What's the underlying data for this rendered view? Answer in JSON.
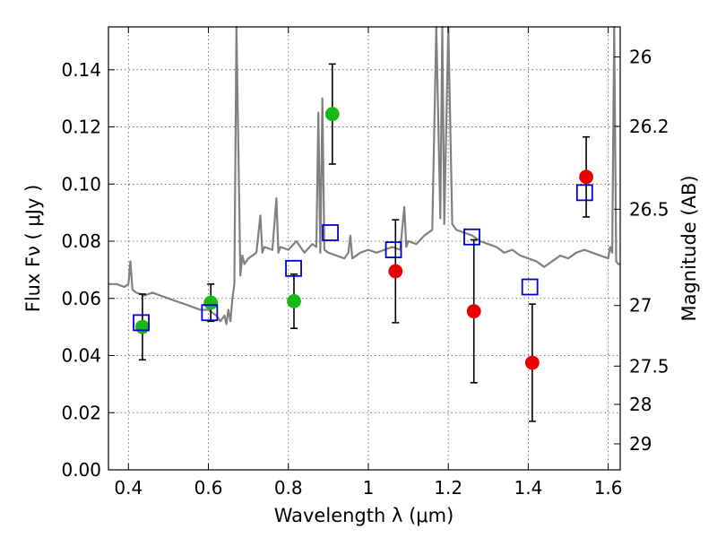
{
  "chart_data": {
    "type": "scatter",
    "xlabel": "Wavelength  λ (μm)",
    "ylabel": "Flux  Fν  ( μJy )",
    "ylabel2": "Magnitude (AB)",
    "xlim": [
      0.35,
      1.63
    ],
    "ylim": [
      0.0,
      0.155
    ],
    "grid": true,
    "x_ticks": [
      0.4,
      0.6,
      0.8,
      1.0,
      1.2,
      1.4,
      1.6
    ],
    "x_tick_labels": [
      "0.4",
      "0.6",
      "0.8",
      "1",
      "1.2",
      "1.4",
      "1.6"
    ],
    "y_ticks": [
      0.0,
      0.02,
      0.04,
      0.06,
      0.08,
      0.1,
      0.12,
      0.14
    ],
    "y_tick_labels": [
      "0.00",
      "0.02",
      "0.04",
      "0.06",
      "0.08",
      "0.10",
      "0.12",
      "0.14"
    ],
    "right_ticks": [
      {
        "label": "26",
        "flux": 0.1445
      },
      {
        "label": "26.2",
        "flux": 0.1202
      },
      {
        "label": "26.5",
        "flux": 0.0912
      },
      {
        "label": "27",
        "flux": 0.0575
      },
      {
        "label": "27.5",
        "flux": 0.0363
      },
      {
        "label": "28",
        "flux": 0.0229
      },
      {
        "label": "29",
        "flux": 0.0091
      }
    ],
    "colors": {
      "green": "#17b817",
      "red": "#e80000",
      "blue_square": "#0000cc",
      "spectrum": "#808080",
      "errorbar": "#000000"
    },
    "series": [
      {
        "marker": "circle-green",
        "points": [
          {
            "x": 0.435,
            "y": 0.05,
            "err": 0.0115
          },
          {
            "x": 0.606,
            "y": 0.0585,
            "err": 0.0065
          },
          {
            "x": 0.814,
            "y": 0.059,
            "err": 0.0095
          },
          {
            "x": 0.91,
            "y": 0.1245,
            "err": 0.0175
          }
        ]
      },
      {
        "marker": "circle-red",
        "points": [
          {
            "x": 1.068,
            "y": 0.0695,
            "err": 0.018
          },
          {
            "x": 1.264,
            "y": 0.0555,
            "err": 0.025
          },
          {
            "x": 1.41,
            "y": 0.0375,
            "err": 0.0205
          },
          {
            "x": 1.545,
            "y": 0.1025,
            "err": 0.014
          }
        ]
      },
      {
        "marker": "square-blue",
        "points": [
          {
            "x": 0.432,
            "y": 0.0515
          },
          {
            "x": 0.603,
            "y": 0.055
          },
          {
            "x": 0.813,
            "y": 0.0705
          },
          {
            "x": 0.905,
            "y": 0.083
          },
          {
            "x": 1.063,
            "y": 0.077
          },
          {
            "x": 1.259,
            "y": 0.0815
          },
          {
            "x": 1.404,
            "y": 0.064
          },
          {
            "x": 1.541,
            "y": 0.097
          }
        ]
      }
    ],
    "spectrum": {
      "x": [
        0.35,
        0.37,
        0.39,
        0.4,
        0.405,
        0.41,
        0.42,
        0.44,
        0.46,
        0.48,
        0.5,
        0.52,
        0.54,
        0.56,
        0.58,
        0.6,
        0.62,
        0.63,
        0.64,
        0.645,
        0.65,
        0.655,
        0.66,
        0.665,
        0.67,
        0.68,
        0.685,
        0.69,
        0.7,
        0.72,
        0.73,
        0.735,
        0.74,
        0.76,
        0.77,
        0.775,
        0.78,
        0.8,
        0.82,
        0.84,
        0.86,
        0.87,
        0.875,
        0.88,
        0.885,
        0.89,
        0.9,
        0.92,
        0.94,
        0.95,
        0.955,
        0.96,
        0.98,
        1.0,
        1.02,
        1.04,
        1.06,
        1.08,
        1.09,
        1.095,
        1.1,
        1.12,
        1.14,
        1.16,
        1.17,
        1.18,
        1.185,
        1.19,
        1.2,
        1.21,
        1.22,
        1.24,
        1.26,
        1.28,
        1.3,
        1.32,
        1.34,
        1.36,
        1.38,
        1.4,
        1.42,
        1.44,
        1.46,
        1.48,
        1.5,
        1.52,
        1.54,
        1.56,
        1.58,
        1.6,
        1.605,
        1.61,
        1.615,
        1.62,
        1.625,
        1.63
      ],
      "y": [
        0.065,
        0.065,
        0.064,
        0.065,
        0.073,
        0.063,
        0.062,
        0.061,
        0.062,
        0.061,
        0.06,
        0.059,
        0.058,
        0.057,
        0.056,
        0.056,
        0.054,
        0.052,
        0.054,
        0.051,
        0.056,
        0.052,
        0.06,
        0.065,
        0.16,
        0.068,
        0.075,
        0.072,
        0.074,
        0.076,
        0.089,
        0.076,
        0.078,
        0.077,
        0.095,
        0.076,
        0.078,
        0.077,
        0.08,
        0.076,
        0.079,
        0.078,
        0.125,
        0.076,
        0.13,
        0.077,
        0.076,
        0.075,
        0.074,
        0.076,
        0.082,
        0.074,
        0.076,
        0.077,
        0.076,
        0.077,
        0.078,
        0.077,
        0.092,
        0.078,
        0.08,
        0.079,
        0.082,
        0.084,
        0.16,
        0.088,
        0.16,
        0.086,
        0.16,
        0.086,
        0.084,
        0.083,
        0.082,
        0.08,
        0.079,
        0.078,
        0.076,
        0.077,
        0.075,
        0.074,
        0.073,
        0.071,
        0.073,
        0.075,
        0.074,
        0.076,
        0.077,
        0.076,
        0.075,
        0.074,
        0.078,
        0.076,
        0.16,
        0.073,
        0.072,
        0.072
      ]
    }
  }
}
